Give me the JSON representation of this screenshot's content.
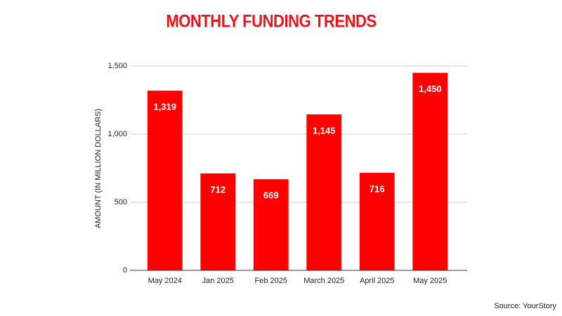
{
  "chart_data": {
    "type": "bar",
    "title": "MONTHLY FUNDING TRENDS",
    "y_label": "AMOUNT (IN MILLION DOLLARS)",
    "source": "Source: YourStory",
    "categories": [
      "May 2024",
      "Jan 2025",
      "Feb 2025",
      "March 2025",
      "April 2025",
      "May 2025"
    ],
    "values": [
      1319,
      712,
      669,
      1145,
      716,
      1450
    ],
    "value_labels": [
      "1,319",
      "712",
      "669",
      "1,145",
      "716",
      "1,450"
    ],
    "color": "#ff0000",
    "ylim": [
      0,
      1500
    ],
    "yticks": [
      0,
      500,
      {
        "value": 1000,
        "label": "1,000"
      },
      {
        "value": 1500,
        "label": "1,500"
      }
    ],
    "grid": true
  }
}
